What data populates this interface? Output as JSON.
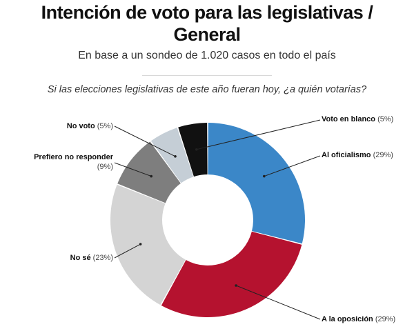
{
  "header": {
    "title_line1": "Intención de voto para las legislativas /",
    "title_line2": "General",
    "subtitle": "En base a un sondeo de 1.020 casos en todo el país",
    "question": "Si las elecciones legislativas de este año fueran hoy, ¿a quién votarías?"
  },
  "chart_data": {
    "type": "pie",
    "variant": "donut",
    "title": "Intención de voto para las legislativas / General",
    "subtitle": "En base a un sondeo de 1.020 casos en todo el país",
    "question": "Si las elecciones legislativas de este año fueran hoy, ¿a quién votarías?",
    "unit": "%",
    "slices": [
      {
        "label": "Al oficialismo",
        "value": 29,
        "pct_text": "(29%)",
        "color": "#3b87c8"
      },
      {
        "label": "A la oposición",
        "value": 29,
        "pct_text": "(29%)",
        "color": "#b5122f"
      },
      {
        "label": "No sé",
        "value": 23,
        "pct_text": "(23%)",
        "color": "#d4d4d4"
      },
      {
        "label": "Prefiero no responder",
        "value": 9,
        "pct_text": "(9%)",
        "color": "#7e7e7e"
      },
      {
        "label": "No voto",
        "value": 5,
        "pct_text": "(5%)",
        "color": "#c5ced6"
      },
      {
        "label": "Voto en blanco",
        "value": 5,
        "pct_text": "(5%)",
        "color": "#111111"
      }
    ]
  }
}
